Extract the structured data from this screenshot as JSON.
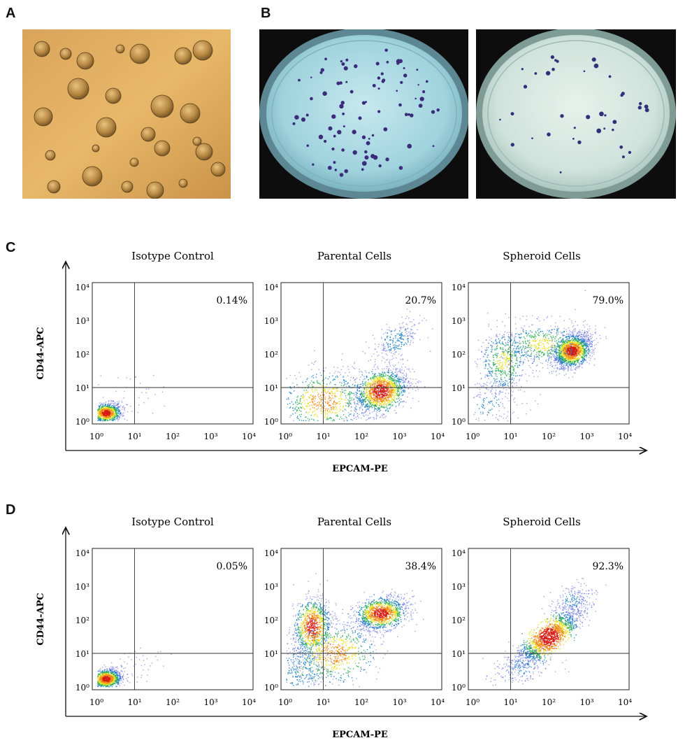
{
  "figure": {
    "panel_labels": [
      "A",
      "B",
      "C",
      "D"
    ],
    "flow_rows": [
      {
        "label": "C",
        "y_axis_label": "CD44-APC",
        "x_axis_label": "EPCAM-PE",
        "tick_labels": [
          "10⁰",
          "10¹",
          "10²",
          "10³",
          "10⁴"
        ],
        "plots": [
          {
            "title": "Isotype Control",
            "percent": "0.14%"
          },
          {
            "title": "Parental Cells",
            "percent": "20.7%"
          },
          {
            "title": "Spheroid Cells",
            "percent": "79.0%"
          }
        ]
      },
      {
        "label": "D",
        "y_axis_label": "CD44-APC",
        "x_axis_label": "EPCAM-PE",
        "tick_labels": [
          "10⁰",
          "10¹",
          "10²",
          "10³",
          "10⁴"
        ],
        "plots": [
          {
            "title": "Isotype Control",
            "percent": "0.05%"
          },
          {
            "title": "Parental Cells",
            "percent": "38.4%"
          },
          {
            "title": "Spheroid Cells",
            "percent": "92.3%"
          }
        ]
      }
    ]
  },
  "chart_data": [
    {
      "type": "scatter",
      "title": "Isotype Control",
      "xlabel": "EPCAM-PE",
      "ylabel": "CD44-APC",
      "xscale": "log",
      "yscale": "log",
      "xlim": [
        1,
        10000
      ],
      "ylim": [
        1,
        10000
      ],
      "gate": {
        "x": 10,
        "y": 10
      },
      "quadrant_percent": 0.14
    },
    {
      "type": "scatter",
      "title": "Parental Cells",
      "xlabel": "EPCAM-PE",
      "ylabel": "CD44-APC",
      "xscale": "log",
      "yscale": "log",
      "xlim": [
        1,
        10000
      ],
      "ylim": [
        1,
        10000
      ],
      "gate": {
        "x": 10,
        "y": 10
      },
      "quadrant_percent": 20.7
    },
    {
      "type": "scatter",
      "title": "Spheroid Cells",
      "xlabel": "EPCAM-PE",
      "ylabel": "CD44-APC",
      "xscale": "log",
      "yscale": "log",
      "xlim": [
        1,
        10000
      ],
      "ylim": [
        1,
        10000
      ],
      "gate": {
        "x": 10,
        "y": 10
      },
      "quadrant_percent": 79.0
    },
    {
      "type": "scatter",
      "title": "Isotype Control",
      "xlabel": "EPCAM-PE",
      "ylabel": "CD44-APC",
      "xscale": "log",
      "yscale": "log",
      "xlim": [
        1,
        10000
      ],
      "ylim": [
        1,
        10000
      ],
      "gate": {
        "x": 10,
        "y": 10
      },
      "quadrant_percent": 0.05
    },
    {
      "type": "scatter",
      "title": "Parental Cells",
      "xlabel": "EPCAM-PE",
      "ylabel": "CD44-APC",
      "xscale": "log",
      "yscale": "log",
      "xlim": [
        1,
        10000
      ],
      "ylim": [
        1,
        10000
      ],
      "gate": {
        "x": 10,
        "y": 10
      },
      "quadrant_percent": 38.4
    },
    {
      "type": "scatter",
      "title": "Spheroid Cells",
      "xlabel": "EPCAM-PE",
      "ylabel": "CD44-APC",
      "xscale": "log",
      "yscale": "log",
      "xlim": [
        1,
        10000
      ],
      "ylim": [
        1,
        10000
      ],
      "gate": {
        "x": 10,
        "y": 10
      },
      "quadrant_percent": 92.3
    }
  ]
}
